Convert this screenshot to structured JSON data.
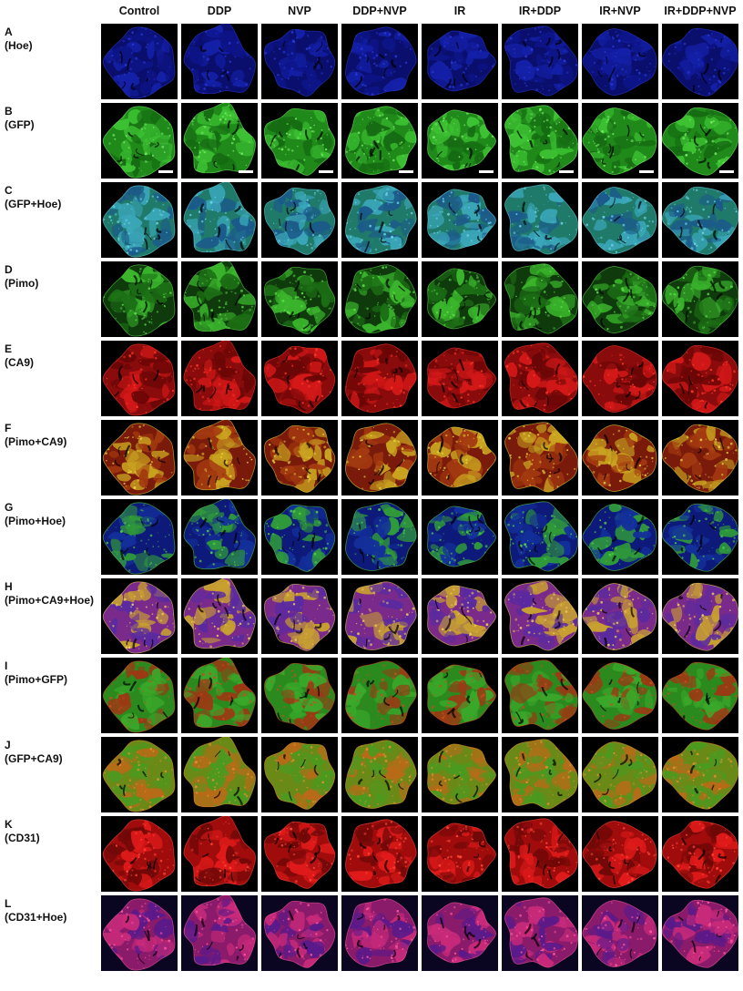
{
  "columns": [
    "Control",
    "DDP",
    "NVP",
    "DDP+NVP",
    "IR",
    "IR+DDP",
    "IR+NVP",
    "IR+DDP+NVP"
  ],
  "rows": [
    {
      "letter": "A",
      "stain": "(Hoe)",
      "palette": [
        "#0a0f6e",
        "#1420a8",
        "#0d1486"
      ],
      "background": "#000000",
      "speckle": "#2a3ad8"
    },
    {
      "letter": "B",
      "stain": "(GFP)",
      "palette": [
        "#1f8a1a",
        "#3dc233",
        "#156b12"
      ],
      "background": "#000000",
      "speckle": "#7cf06a"
    },
    {
      "letter": "C",
      "stain": "(GFP+Hoe)",
      "palette": [
        "#1f7a6a",
        "#3aa6b8",
        "#1b5a8a"
      ],
      "background": "#000000",
      "speckle": "#6fd6e8"
    },
    {
      "letter": "D",
      "stain": "(Pimo)",
      "palette": [
        "#0f3a0c",
        "#3ab52c",
        "#1c6e15"
      ],
      "background": "#000000",
      "speckle": "#5ee04a"
    },
    {
      "letter": "E",
      "stain": "(CA9)",
      "palette": [
        "#8a0b0b",
        "#d41818",
        "#6a0606"
      ],
      "background": "#000000",
      "speckle": "#ff3a2a"
    },
    {
      "letter": "F",
      "stain": "(Pimo+CA9)",
      "palette": [
        "#7a1a0a",
        "#c9a420",
        "#a33a10"
      ],
      "background": "#000000",
      "speckle": "#e8d840"
    },
    {
      "letter": "G",
      "stain": "(Pimo+Hoe)",
      "palette": [
        "#0e1a7a",
        "#2f9a3a",
        "#13309a"
      ],
      "background": "#000000",
      "speckle": "#56d64a"
    },
    {
      "letter": "H",
      "stain": "(Pimo+CA9+Hoe)",
      "palette": [
        "#7a2a8a",
        "#c8a030",
        "#5a2aa0"
      ],
      "background": "#000000",
      "speckle": "#f0d060"
    },
    {
      "letter": "I",
      "stain": "(Pimo+GFP)",
      "palette": [
        "#2a8a1e",
        "#9a3a14",
        "#3aa82a"
      ],
      "background": "#000000",
      "speckle": "#d04a20"
    },
    {
      "letter": "J",
      "stain": "(GFP+CA9)",
      "palette": [
        "#6a8a18",
        "#b86a18",
        "#4a9a20"
      ],
      "background": "#000000",
      "speckle": "#e89030"
    },
    {
      "letter": "K",
      "stain": "(CD31)",
      "palette": [
        "#a00c0c",
        "#e01a1a",
        "#700808"
      ],
      "background": "#000000",
      "speckle": "#ff4a3a"
    },
    {
      "letter": "L",
      "stain": "(CD31+Hoe)",
      "palette": [
        "#8a1a6a",
        "#c82a7a",
        "#5a1a8a"
      ],
      "background": "#0a0520",
      "speckle": "#ff5aa0"
    }
  ]
}
